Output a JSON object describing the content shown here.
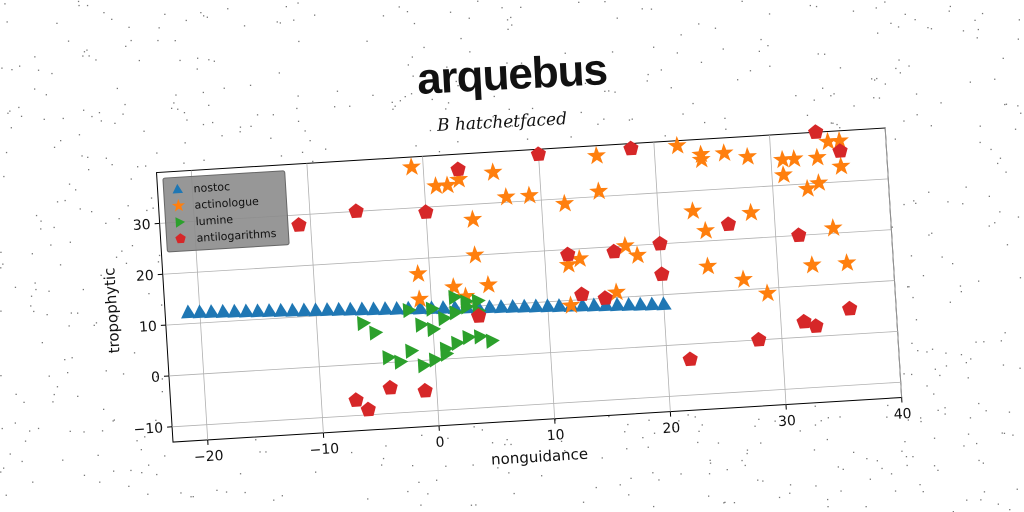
{
  "title": "arquebus",
  "subtitle": "B hatchetfaced",
  "chart_data": {
    "type": "scatter",
    "title": "arquebus",
    "subtitle": "B hatchetfaced",
    "xlabel": "nonguidance",
    "ylabel": "tropophytic",
    "xlim": [
      -23,
      40
    ],
    "ylim": [
      -13,
      40
    ],
    "xticks": [
      -20,
      -10,
      0,
      10,
      20,
      30,
      40
    ],
    "yticks": [
      -10,
      0,
      10,
      20,
      30
    ],
    "xtick_labels": [
      "−20",
      "−10",
      "0",
      "10",
      "20",
      "30",
      "40"
    ],
    "ytick_labels": [
      "−10",
      "0",
      "10",
      "20",
      "30"
    ],
    "grid": true,
    "legend_position": "top-left",
    "series": [
      {
        "name": "nostoc",
        "marker": "triangle-up",
        "color": "#1f77b4",
        "points": [
          [
            -21,
            12.2
          ],
          [
            -20,
            12.1
          ],
          [
            -19,
            12.0
          ],
          [
            -18,
            11.9
          ],
          [
            -17,
            11.8
          ],
          [
            -16,
            11.7
          ],
          [
            -15,
            11.6
          ],
          [
            -14,
            11.5
          ],
          [
            -13,
            11.4
          ],
          [
            -12,
            11.3
          ],
          [
            -11,
            11.2
          ],
          [
            -10,
            11.1
          ],
          [
            -9,
            11.0
          ],
          [
            -8,
            10.9
          ],
          [
            -7,
            10.8
          ],
          [
            -6,
            10.7
          ],
          [
            -5,
            10.6
          ],
          [
            -4,
            10.5
          ],
          [
            -3,
            10.4
          ],
          [
            -2,
            10.3
          ],
          [
            -1,
            10.2
          ],
          [
            0,
            10.1
          ],
          [
            1,
            10.0
          ],
          [
            2,
            9.9
          ],
          [
            3,
            9.8
          ],
          [
            4,
            9.7
          ],
          [
            5,
            9.6
          ],
          [
            6,
            9.5
          ],
          [
            7,
            9.4
          ],
          [
            8,
            9.3
          ],
          [
            9,
            9.2
          ],
          [
            10,
            9.1
          ],
          [
            11,
            9.0
          ],
          [
            12,
            8.9
          ],
          [
            13,
            8.8
          ],
          [
            14,
            8.7
          ],
          [
            15,
            8.6
          ],
          [
            16,
            8.5
          ],
          [
            17,
            8.4
          ],
          [
            18,
            8.3
          ],
          [
            19,
            8.2
          ],
          [
            20,
            8.1
          ]
        ]
      },
      {
        "name": "actinologue",
        "marker": "star",
        "color": "#ff7f0e",
        "points": [
          [
            -1,
            38
          ],
          [
            1,
            34
          ],
          [
            2,
            34
          ],
          [
            3,
            35
          ],
          [
            6,
            36
          ],
          [
            4,
            27
          ],
          [
            7,
            31
          ],
          [
            9,
            31
          ],
          [
            12,
            29
          ],
          [
            15,
            31
          ],
          [
            15,
            38
          ],
          [
            22,
            39
          ],
          [
            24,
            37
          ],
          [
            26,
            37
          ],
          [
            28,
            36
          ],
          [
            31,
            35
          ],
          [
            32,
            35
          ],
          [
            34,
            35
          ],
          [
            35,
            38
          ],
          [
            36,
            38
          ],
          [
            36,
            33
          ],
          [
            34,
            30
          ],
          [
            33,
            29
          ],
          [
            31,
            32
          ],
          [
            24,
            36
          ],
          [
            23,
            26
          ],
          [
            24,
            22
          ],
          [
            28,
            25
          ],
          [
            -1,
            17
          ],
          [
            4,
            20
          ],
          [
            2,
            14
          ],
          [
            5,
            14
          ],
          [
            12,
            17
          ],
          [
            13,
            18
          ],
          [
            17,
            20
          ],
          [
            18,
            18
          ],
          [
            12,
            9
          ],
          [
            16,
            11
          ],
          [
            24,
            15
          ],
          [
            27,
            12
          ],
          [
            29,
            9
          ],
          [
            33,
            14
          ],
          [
            36,
            14
          ],
          [
            35,
            21
          ],
          [
            -1,
            12
          ],
          [
            3,
            12
          ]
        ]
      },
      {
        "name": "lumine",
        "marker": "triangle-right",
        "color": "#2ca02c",
        "points": [
          [
            -6,
            8
          ],
          [
            -5,
            6
          ],
          [
            -4,
            1
          ],
          [
            -3,
            0
          ],
          [
            -2,
            2
          ],
          [
            -1,
            7
          ],
          [
            0,
            6
          ],
          [
            1,
            8
          ],
          [
            2,
            9
          ],
          [
            3,
            10
          ],
          [
            4,
            9
          ],
          [
            -1,
            -1
          ],
          [
            0,
            0
          ],
          [
            1,
            2
          ],
          [
            2,
            3
          ],
          [
            3,
            4
          ],
          [
            4,
            4
          ],
          [
            5,
            3
          ],
          [
            1,
            1
          ],
          [
            -2,
            10
          ],
          [
            0,
            10
          ],
          [
            2,
            12
          ],
          [
            3,
            11
          ],
          [
            4,
            11
          ]
        ]
      },
      {
        "name": "antilogarithms",
        "marker": "pentagon",
        "color": "#d62728",
        "points": [
          [
            3,
            37
          ],
          [
            10,
            39
          ],
          [
            18,
            39
          ],
          [
            -11,
            28
          ],
          [
            -6,
            30
          ],
          [
            0,
            29
          ],
          [
            34,
            40
          ],
          [
            36,
            36
          ],
          [
            12,
            19
          ],
          [
            16,
            19
          ],
          [
            20,
            20
          ],
          [
            20,
            14
          ],
          [
            13,
            11
          ],
          [
            15,
            10
          ],
          [
            4,
            8
          ],
          [
            26,
            23
          ],
          [
            32,
            20
          ],
          [
            36,
            5
          ],
          [
            32,
            3
          ],
          [
            33,
            2
          ],
          [
            28,
            0
          ],
          [
            22,
            -3
          ],
          [
            -7,
            -7
          ],
          [
            -6,
            -9
          ],
          [
            -4,
            -5
          ],
          [
            -1,
            -6
          ]
        ]
      }
    ]
  }
}
